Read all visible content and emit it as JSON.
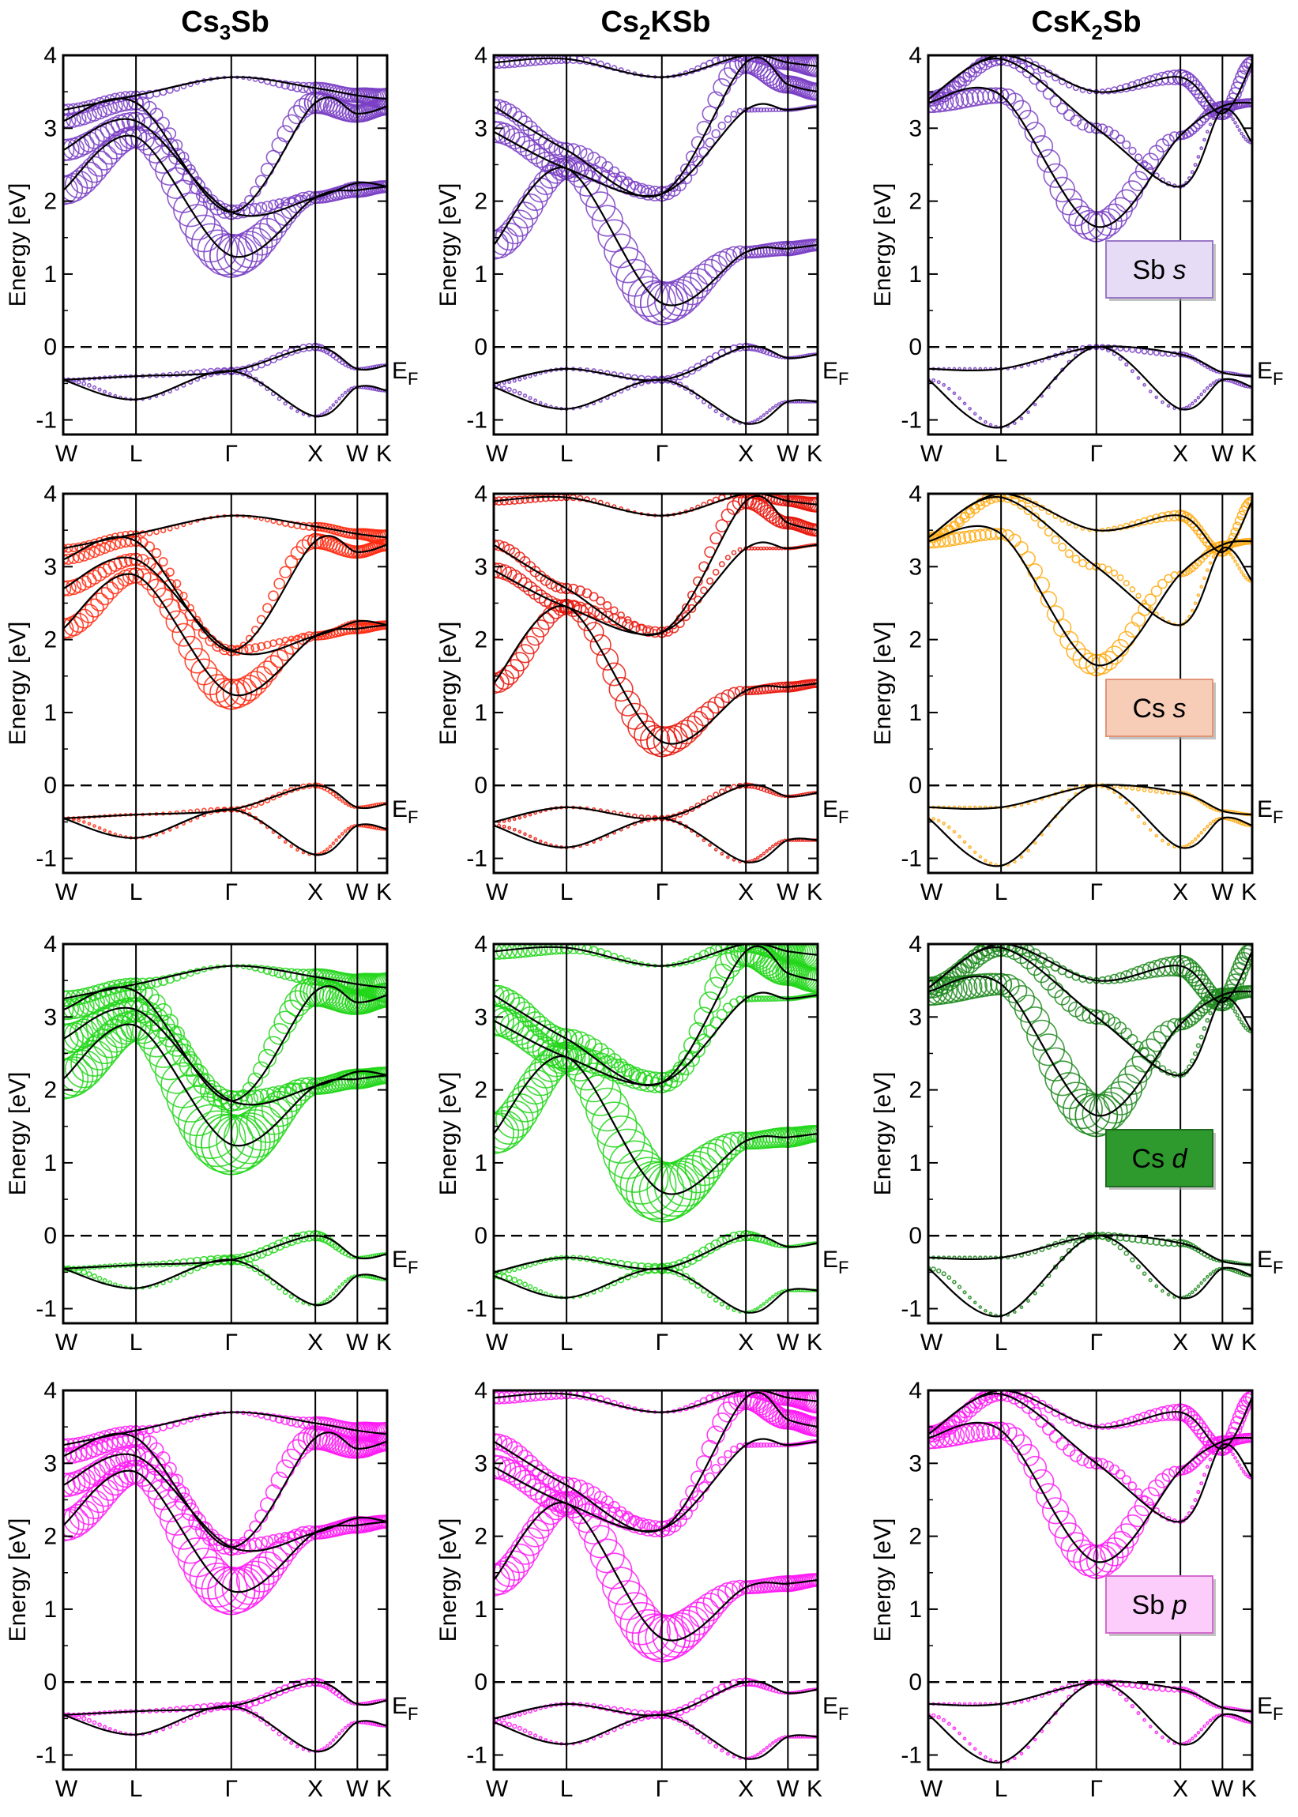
{
  "columns": [
    {
      "name": "Cs",
      "sub": "3",
      "rest": "Sb"
    },
    {
      "name": "Cs",
      "sub": "2",
      "rest": "KSb"
    },
    {
      "name": "CsK",
      "sub": "2",
      "rest": "Sb"
    }
  ],
  "rows": [
    {
      "orbital": "s",
      "label": "Sb",
      "legend_col": 2,
      "colors": [
        "#7a3fc4",
        "#7a3fc4",
        "#7a3fc4"
      ],
      "fill": "#e3d6f3",
      "legend_fill": "#e6dcf5",
      "legend_border": "#9a78c8"
    },
    {
      "orbital": "s",
      "label": "Cs",
      "legend_col": 2,
      "colors": [
        "#ff2a10",
        "#e8160c",
        "#ffaa10"
      ],
      "fill": "#ffffff",
      "legend_fill": "#f8cdb8",
      "legend_border": "#e29476"
    },
    {
      "orbital": "d",
      "label": "Cs",
      "legend_col": 2,
      "colors": [
        "#22d61a",
        "#22d61a",
        "#1e8a1e"
      ],
      "fill": "#ffffff",
      "legend_fill": "#2e9a2e",
      "legend_border": "#1f6a1f"
    },
    {
      "orbital": "p",
      "label": "Sb",
      "legend_col": 2,
      "colors": [
        "#ff1af4",
        "#ff1af4",
        "#ff1af4"
      ],
      "fill": "#ffffff",
      "legend_fill": "#fccdfa",
      "legend_border": "#d46ad0"
    }
  ],
  "chart_data": {
    "type": "line",
    "title": "",
    "ylabel": "Energy [eV]",
    "xlabel": "",
    "ylim": [
      -1.2,
      4
    ],
    "yticks": [
      -1,
      0,
      1,
      2,
      3,
      4
    ],
    "ytick_labels": [
      "-1",
      "0",
      "1",
      "2",
      "3",
      "4"
    ],
    "kpath_labels": [
      "W",
      "L",
      "Γ",
      "X",
      "W",
      "K"
    ],
    "kpath_positions": [
      0,
      0.866,
      2.0,
      3.0,
      3.5,
      3.854
    ],
    "fermi_label": "E",
    "fermi_sub": "F",
    "fermi_level": 0,
    "panels": [
      {
        "material": "Cs3Sb",
        "bands": [
          {
            "k": [
              0,
              0.866,
              2.0,
              3.0,
              3.5,
              3.854
            ],
            "e": [
              -0.45,
              -0.72,
              -0.33,
              -0.95,
              -0.55,
              -0.6
            ]
          },
          {
            "k": [
              0,
              0.866,
              2.0,
              3.0,
              3.5,
              3.854
            ],
            "e": [
              -0.45,
              -0.4,
              -0.33,
              0.0,
              -0.3,
              -0.25
            ]
          },
          {
            "k": [
              0,
              0.866,
              2.0,
              3.0,
              3.5,
              3.854
            ],
            "e": [
              2.15,
              2.88,
              1.25,
              2.05,
              2.15,
              2.2
            ]
          },
          {
            "k": [
              0,
              0.866,
              2.0,
              3.0,
              3.5,
              3.854
            ],
            "e": [
              2.7,
              3.1,
              1.85,
              2.05,
              2.25,
              2.2
            ]
          },
          {
            "k": [
              0,
              0.866,
              2.0,
              3.0,
              3.5,
              3.854
            ],
            "e": [
              3.1,
              3.35,
              1.85,
              3.35,
              3.2,
              3.3
            ]
          },
          {
            "k": [
              0,
              0.866,
              2.0,
              3.0,
              3.5,
              3.854
            ],
            "e": [
              3.25,
              3.45,
              3.7,
              3.55,
              3.45,
              3.4
            ]
          }
        ]
      },
      {
        "material": "Cs2KSb",
        "bands": [
          {
            "k": [
              0,
              0.866,
              2.0,
              3.0,
              3.5,
              3.854
            ],
            "e": [
              -0.55,
              -0.85,
              -0.45,
              -1.05,
              -0.75,
              -0.75
            ]
          },
          {
            "k": [
              0,
              0.866,
              2.0,
              3.0,
              3.5,
              3.854
            ],
            "e": [
              -0.5,
              -0.3,
              -0.45,
              0.0,
              -0.15,
              -0.1
            ]
          },
          {
            "k": [
              0,
              0.866,
              2.0,
              3.0,
              3.5,
              3.854
            ],
            "e": [
              1.4,
              2.45,
              0.6,
              1.3,
              1.35,
              1.4
            ]
          },
          {
            "k": [
              0,
              0.866,
              2.0,
              3.0,
              3.5,
              3.854
            ],
            "e": [
              2.95,
              2.45,
              2.1,
              3.25,
              3.25,
              3.3
            ]
          },
          {
            "k": [
              0,
              0.866,
              2.0,
              3.0,
              3.5,
              3.854
            ],
            "e": [
              3.3,
              2.7,
              2.1,
              3.9,
              3.6,
              3.5
            ]
          },
          {
            "k": [
              0,
              0.866,
              2.0,
              3.0,
              3.5,
              3.854
            ],
            "e": [
              3.9,
              3.95,
              3.7,
              4.0,
              3.9,
              3.85
            ]
          }
        ]
      },
      {
        "material": "CsK2Sb",
        "bands": [
          {
            "k": [
              0,
              0.866,
              2.0,
              3.0,
              3.5,
              3.854
            ],
            "e": [
              -0.45,
              -1.1,
              0.0,
              -0.85,
              -0.45,
              -0.55
            ]
          },
          {
            "k": [
              0,
              0.866,
              2.0,
              3.0,
              3.5,
              3.854
            ],
            "e": [
              -0.3,
              -0.3,
              0.0,
              -0.1,
              -0.35,
              -0.4
            ]
          },
          {
            "k": [
              0,
              0.866,
              2.0,
              3.0,
              3.5,
              3.854
            ],
            "e": [
              3.35,
              3.45,
              1.65,
              2.9,
              3.3,
              3.35
            ]
          },
          {
            "k": [
              0,
              0.866,
              2.0,
              3.0,
              3.5,
              3.854
            ],
            "e": [
              3.4,
              3.95,
              3.0,
              2.2,
              3.25,
              2.8
            ]
          },
          {
            "k": [
              0,
              0.866,
              2.0,
              3.0,
              3.5,
              3.854
            ],
            "e": [
              3.4,
              4.0,
              3.5,
              3.7,
              3.2,
              3.9
            ]
          }
        ]
      }
    ],
    "weights": [
      [
        [
          0.3,
          0.1,
          0.4,
          0.1,
          0.1,
          0.1
        ],
        [
          0.2,
          0.2,
          0.5,
          0.5,
          0.1,
          0.1
        ],
        [
          2.0,
          1.5,
          3.0,
          0.8,
          1.0,
          0.8
        ],
        [
          1.5,
          1.2,
          1.0,
          0.3,
          0.2,
          0.2
        ],
        [
          1.0,
          1.0,
          0.4,
          1.5,
          1.2,
          1.2
        ],
        [
          0.8,
          0.6,
          0.1,
          0.8,
          1.0,
          1.5
        ]
      ]
    ]
  }
}
